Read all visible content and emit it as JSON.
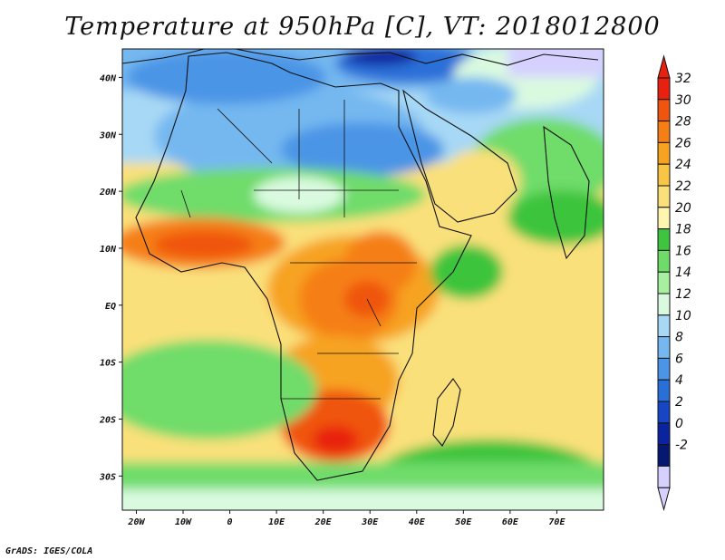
{
  "title": "Temperature at 950hPa [C], VT: 2018012800",
  "footer": "GrADS: IGES/COLA",
  "map": {
    "projection": "lat-lon",
    "lon_range": [
      -23,
      80
    ],
    "lat_range": [
      -36,
      45
    ],
    "lon_ticks": [
      {
        "value": -20,
        "label": "20W"
      },
      {
        "value": -10,
        "label": "10W"
      },
      {
        "value": 0,
        "label": "0"
      },
      {
        "value": 10,
        "label": "10E"
      },
      {
        "value": 20,
        "label": "20E"
      },
      {
        "value": 30,
        "label": "30E"
      },
      {
        "value": 40,
        "label": "40E"
      },
      {
        "value": 50,
        "label": "50E"
      },
      {
        "value": 60,
        "label": "60E"
      },
      {
        "value": 70,
        "label": "70E"
      }
    ],
    "lat_ticks": [
      {
        "value": 40,
        "label": "40N"
      },
      {
        "value": 30,
        "label": "30N"
      },
      {
        "value": 20,
        "label": "20N"
      },
      {
        "value": 10,
        "label": "10N"
      },
      {
        "value": 0,
        "label": "EQ"
      },
      {
        "value": -10,
        "label": "10S"
      },
      {
        "value": -20,
        "label": "20S"
      },
      {
        "value": -30,
        "label": "30S"
      }
    ]
  },
  "colorbar": {
    "levels": [
      "32",
      "30",
      "28",
      "26",
      "24",
      "22",
      "20",
      "18",
      "16",
      "14",
      "12",
      "10",
      "8",
      "6",
      "4",
      "2",
      "0",
      "-2"
    ],
    "colors": [
      "#e8200f",
      "#f05510",
      "#f57f15",
      "#f7a322",
      "#f8c545",
      "#fae07a",
      "#fdf5b0",
      "#3ec43e",
      "#6fdc6a",
      "#a6f0a0",
      "#dafae0",
      "#a7d8f5",
      "#75b8f0",
      "#4c95e6",
      "#2a6fd8",
      "#1646c4",
      "#0a239e",
      "#071870",
      "#d6d0ff"
    ],
    "top_color": "#e8200f",
    "bottom_color": "#d6d0ff"
  }
}
